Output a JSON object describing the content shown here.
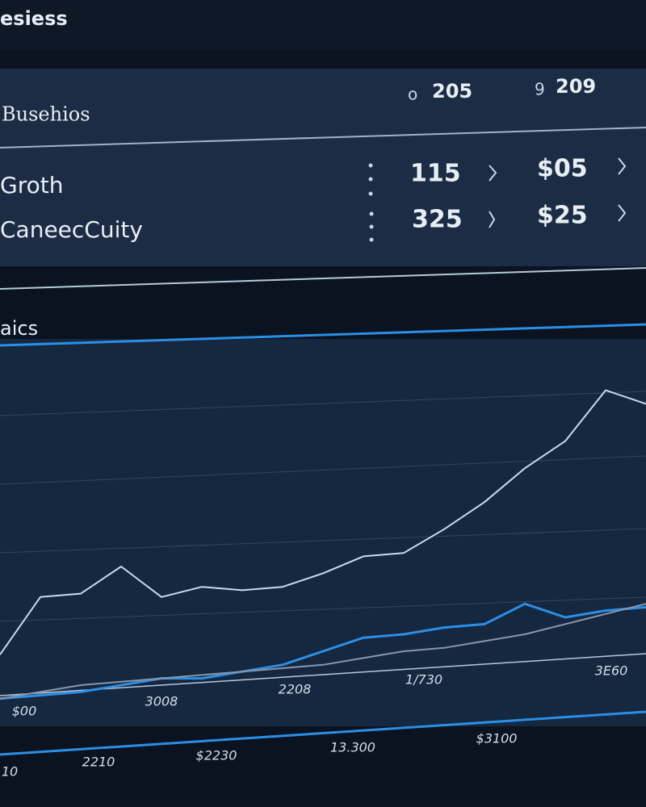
{
  "header": {
    "title": "esiess"
  },
  "table": {
    "title": "Busehios",
    "columns": [
      {
        "icon": "o",
        "label": "205"
      },
      {
        "icon": "9",
        "label": "209"
      }
    ],
    "rows": [
      {
        "label": "Groth",
        "cells": [
          "115",
          "$05"
        ]
      },
      {
        "label": "CaneecCuity",
        "cells": [
          "325",
          "$25"
        ]
      }
    ]
  },
  "section_title": "aics",
  "chart_data": {
    "type": "line",
    "categories": [
      null,
      null,
      null,
      null,
      null,
      null,
      null,
      null,
      null,
      null,
      null,
      null,
      null,
      null,
      null,
      null,
      null
    ],
    "series": [
      {
        "color": "#c9dbee",
        "values": [
          14,
          31,
          32,
          40,
          31,
          34,
          33,
          34,
          38,
          43,
          44,
          51,
          59,
          69,
          77,
          92,
          88
        ]
      },
      {
        "color": "#2a8fe6",
        "values": [
          1,
          2,
          3,
          5,
          7,
          7,
          9,
          11,
          15,
          19,
          20,
          22,
          23,
          29,
          25,
          27,
          28
        ]
      },
      {
        "color": "#8a96a8",
        "values": [
          1,
          3,
          5,
          6,
          7,
          8,
          9,
          10,
          11,
          13,
          15,
          16,
          18,
          20,
          23,
          26,
          29
        ]
      }
    ],
    "ylim": [
      0,
      100
    ],
    "x_labels": [
      "$00",
      "3008",
      "2208",
      "1/730",
      "3E60"
    ],
    "x_labels_2": [
      "10",
      "2210",
      "$2230",
      "13.300",
      "$3100"
    ]
  }
}
